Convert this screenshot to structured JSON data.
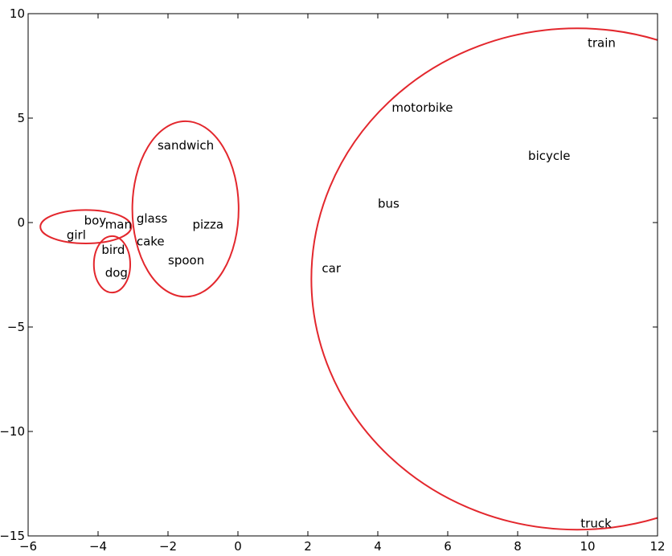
{
  "chart_data": {
    "type": "scatter",
    "title": "",
    "xlabel": "",
    "ylabel": "",
    "xlim": [
      -6,
      12
    ],
    "ylim": [
      -15,
      10
    ],
    "grid": false,
    "x_ticks": [
      -6,
      -4,
      -2,
      0,
      2,
      4,
      6,
      8,
      10,
      12
    ],
    "y_ticks": [
      -15,
      -10,
      -5,
      0,
      5,
      10
    ],
    "x_tick_labels": [
      "−6",
      "−4",
      "−2",
      "0",
      "2",
      "4",
      "6",
      "8",
      "10",
      "12"
    ],
    "y_tick_labels": [
      "−15",
      "−10",
      "−5",
      "0",
      "5",
      "10"
    ],
    "points": [
      {
        "label": "boy",
        "x": -4.4,
        "y": 0.1
      },
      {
        "label": "girl",
        "x": -4.9,
        "y": -0.6
      },
      {
        "label": "man",
        "x": -3.8,
        "y": -0.1
      },
      {
        "label": "bird",
        "x": -3.9,
        "y": -1.3
      },
      {
        "label": "dog",
        "x": -3.8,
        "y": -2.4
      },
      {
        "label": "glass",
        "x": -2.9,
        "y": 0.2
      },
      {
        "label": "cake",
        "x": -2.9,
        "y": -0.9
      },
      {
        "label": "sandwich",
        "x": -2.3,
        "y": 3.7
      },
      {
        "label": "pizza",
        "x": -1.3,
        "y": -0.1
      },
      {
        "label": "spoon",
        "x": -2.0,
        "y": -1.8
      },
      {
        "label": "train",
        "x": 10.0,
        "y": 8.6
      },
      {
        "label": "motorbike",
        "x": 4.4,
        "y": 5.5
      },
      {
        "label": "bicycle",
        "x": 8.3,
        "y": 3.2
      },
      {
        "label": "bus",
        "x": 4.0,
        "y": 0.9
      },
      {
        "label": "car",
        "x": 2.4,
        "y": -2.2
      },
      {
        "label": "truck",
        "x": 9.8,
        "y": -14.4
      }
    ],
    "clusters": [
      {
        "cx": -4.35,
        "cy": -0.2,
        "rx": 1.3,
        "ry": 0.8
      },
      {
        "cx": -3.6,
        "cy": -2.0,
        "rx": 0.52,
        "ry": 1.35
      },
      {
        "cx": -1.5,
        "cy": 0.65,
        "rx": 1.52,
        "ry": 4.2
      },
      {
        "cx": 9.7,
        "cy": -2.7,
        "rx": 7.6,
        "ry": 12.0
      }
    ],
    "cluster_color": "#e3272d"
  }
}
